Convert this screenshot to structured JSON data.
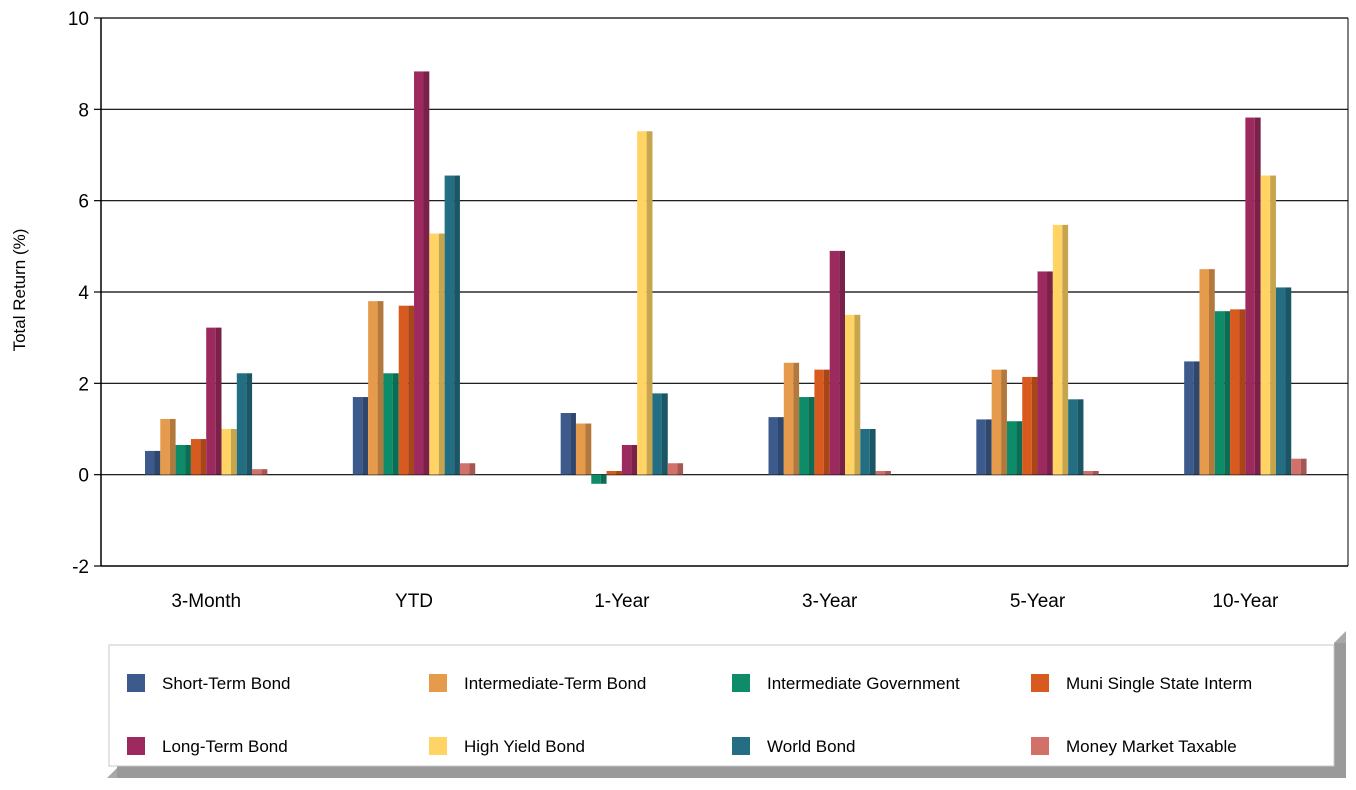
{
  "chart_data": {
    "type": "bar",
    "title": "",
    "xlabel": "",
    "ylabel": "Total Return (%)",
    "ylim": [
      -2,
      10
    ],
    "yticks": [
      -2,
      0,
      2,
      4,
      6,
      8,
      10
    ],
    "grid": true,
    "legend_position": "bottom",
    "categories": [
      "3-Month",
      "YTD",
      "1-Year",
      "3-Year",
      "5-Year",
      "10-Year"
    ],
    "series": [
      {
        "name": "Short-Term Bond",
        "color": "#3C5A8C",
        "values": [
          0.52,
          1.7,
          1.35,
          1.26,
          1.21,
          2.48
        ]
      },
      {
        "name": "Intermediate-Term Bond",
        "color": "#E59A4C",
        "values": [
          1.22,
          3.8,
          1.12,
          2.45,
          2.3,
          4.5
        ]
      },
      {
        "name": "Intermediate Government",
        "color": "#0E8C6A",
        "values": [
          0.65,
          2.22,
          -0.2,
          1.7,
          1.17,
          3.58
        ]
      },
      {
        "name": "Muni Single State Interm",
        "color": "#D85A1E",
        "values": [
          0.78,
          3.7,
          0.08,
          2.3,
          2.14,
          3.62
        ]
      },
      {
        "name": "Long-Term Bond",
        "color": "#9C2A5E",
        "values": [
          3.22,
          8.83,
          0.65,
          4.9,
          4.45,
          7.82
        ]
      },
      {
        "name": "High Yield Bond",
        "color": "#FFD364",
        "values": [
          1.0,
          5.28,
          7.52,
          3.5,
          5.47,
          6.55
        ]
      },
      {
        "name": "World Bond",
        "color": "#236E82",
        "values": [
          2.22,
          6.55,
          1.78,
          1.0,
          1.65,
          4.1
        ]
      },
      {
        "name": "Money Market Taxable",
        "color": "#D2706A",
        "values": [
          0.12,
          0.25,
          0.25,
          0.08,
          0.08,
          0.35
        ]
      }
    ]
  }
}
